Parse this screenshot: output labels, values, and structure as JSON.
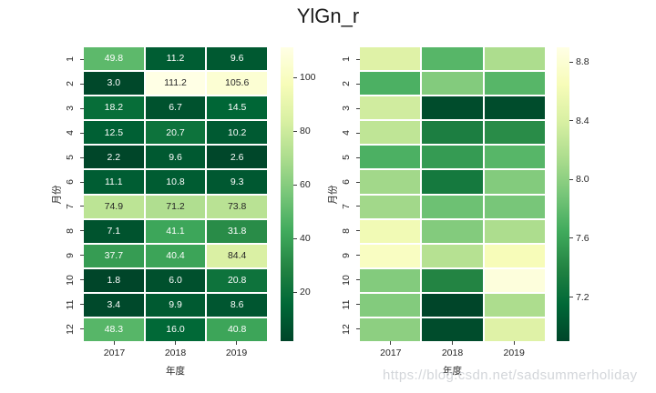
{
  "title": "YlGn_r",
  "watermark": "https://blog.csdn.net/sadsummerholiday",
  "colors": {
    "background": "#ffffff",
    "annotation_dark": "#262626",
    "annotation_light": "#ffffff",
    "tick": "#3d3d3d",
    "tick_label": "#262626",
    "title_text": "#1b1b1b",
    "watermark_text": "#d3d6da",
    "colormap": "YlGn_r",
    "colormap_anchors": [
      [
        0,
        "#ffffe5"
      ],
      [
        0.125,
        "#f7fcb9"
      ],
      [
        0.25,
        "#d9f0a3"
      ],
      [
        0.375,
        "#addd8e"
      ],
      [
        0.5,
        "#78c679"
      ],
      [
        0.625,
        "#41ab5d"
      ],
      [
        0.75,
        "#238443"
      ],
      [
        0.875,
        "#006837"
      ],
      [
        1,
        "#004529"
      ]
    ]
  },
  "chart_data": [
    {
      "type": "heatmap",
      "position": "left",
      "xlabel": "年度",
      "ylabel": "月份",
      "x_ticks": [
        "2017",
        "2018",
        "2019"
      ],
      "y_ticks": [
        "1",
        "2",
        "3",
        "4",
        "5",
        "6",
        "7",
        "8",
        "9",
        "10",
        "11",
        "12"
      ],
      "vmin": 1.8,
      "vmax": 111.2,
      "annotated": true,
      "annotation_format": ".1f",
      "colorbar_ticks": [
        {
          "label": "100",
          "value": 100
        },
        {
          "label": "80",
          "value": 80
        },
        {
          "label": "60",
          "value": 60
        },
        {
          "label": "40",
          "value": 40
        },
        {
          "label": "20",
          "value": 20
        }
      ],
      "rows": [
        [
          49.8,
          11.2,
          9.6
        ],
        [
          3.0,
          111.2,
          105.6
        ],
        [
          18.2,
          6.7,
          14.5
        ],
        [
          12.5,
          20.7,
          10.2
        ],
        [
          2.2,
          9.6,
          2.6
        ],
        [
          11.1,
          10.8,
          9.3
        ],
        [
          74.9,
          71.2,
          73.8
        ],
        [
          7.1,
          41.1,
          31.8
        ],
        [
          37.7,
          40.4,
          84.4
        ],
        [
          1.8,
          6.0,
          20.8
        ],
        [
          3.4,
          9.9,
          8.6
        ],
        [
          48.3,
          16.0,
          40.8
        ]
      ]
    },
    {
      "type": "heatmap",
      "position": "right",
      "xlabel": "年度",
      "ylabel": "月份",
      "x_ticks": [
        "2017",
        "2018",
        "2019"
      ],
      "y_ticks": [
        "1",
        "2",
        "3",
        "4",
        "5",
        "6",
        "7",
        "8",
        "9",
        "10",
        "11",
        "12"
      ],
      "vmin": 6.9,
      "vmax": 8.9,
      "annotated": false,
      "colorbar_ticks": [
        {
          "label": "8.8",
          "value": 8.8
        },
        {
          "label": "8.4",
          "value": 8.4
        },
        {
          "label": "8.0",
          "value": 8.0
        },
        {
          "label": "7.6",
          "value": 7.6
        },
        {
          "label": "7.2",
          "value": 7.2
        }
      ],
      "rows": [
        [
          8.45,
          7.75,
          8.15
        ],
        [
          7.7,
          7.95,
          7.75
        ],
        [
          8.35,
          6.95,
          6.95
        ],
        [
          8.25,
          7.35,
          7.45
        ],
        [
          7.7,
          7.55,
          7.75
        ],
        [
          8.1,
          7.3,
          7.95
        ],
        [
          8.1,
          7.85,
          7.9
        ],
        [
          8.6,
          7.95,
          8.15
        ],
        [
          8.7,
          8.2,
          8.65
        ],
        [
          7.95,
          7.4,
          8.85
        ],
        [
          7.95,
          6.9,
          8.15
        ],
        [
          8.0,
          6.95,
          8.45
        ]
      ]
    }
  ]
}
